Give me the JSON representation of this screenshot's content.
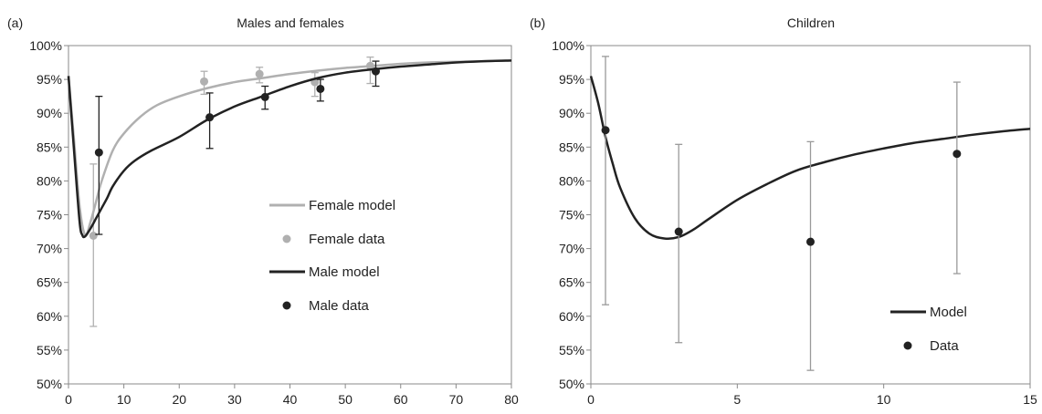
{
  "chart_data": [
    {
      "type": "line",
      "panel_label": "(a)",
      "title": "Males and females",
      "xlim": [
        0,
        80
      ],
      "ylim": [
        0.5,
        1.0
      ],
      "xticks": [
        0,
        10,
        20,
        30,
        40,
        50,
        60,
        70,
        80
      ],
      "yticks": [
        0.5,
        0.55,
        0.6,
        0.65,
        0.7,
        0.75,
        0.8,
        0.85,
        0.9,
        0.95,
        1.0
      ],
      "ytick_labels": [
        "50%",
        "55%",
        "60%",
        "65%",
        "70%",
        "75%",
        "80%",
        "85%",
        "90%",
        "95%",
        "100%"
      ],
      "grid": false,
      "legend_position": "center-right",
      "series": [
        {
          "name": "Female model",
          "kind": "line",
          "color": "#b0b0b0",
          "x": [
            0,
            1,
            2,
            3,
            4,
            5,
            6,
            8,
            10,
            13,
            16,
            20,
            25,
            30,
            35,
            40,
            45,
            50,
            55,
            60,
            65,
            70,
            75,
            80
          ],
          "y": [
            0.955,
            0.86,
            0.763,
            0.72,
            0.74,
            0.77,
            0.8,
            0.845,
            0.87,
            0.895,
            0.912,
            0.925,
            0.937,
            0.946,
            0.952,
            0.958,
            0.963,
            0.967,
            0.97,
            0.973,
            0.975,
            0.976,
            0.977,
            0.978
          ]
        },
        {
          "name": "Female data",
          "kind": "points",
          "color": "#b0b0b0",
          "x": [
            4.5,
            24.5,
            34.5,
            44.5,
            54.5
          ],
          "y": [
            0.719,
            0.947,
            0.958,
            0.946,
            0.97
          ],
          "err_low": [
            0.585,
            0.928,
            0.945,
            0.925,
            0.944
          ],
          "err_high": [
            0.825,
            0.962,
            0.968,
            0.96,
            0.983
          ]
        },
        {
          "name": "Male model",
          "kind": "line",
          "color": "#222222",
          "x": [
            0,
            1,
            2,
            2.5,
            3,
            4,
            5,
            6,
            7,
            8,
            10,
            12,
            15,
            20,
            25,
            30,
            35,
            40,
            45,
            50,
            55,
            60,
            65,
            70,
            75,
            80
          ],
          "y": [
            0.955,
            0.845,
            0.74,
            0.72,
            0.718,
            0.73,
            0.745,
            0.76,
            0.775,
            0.792,
            0.815,
            0.83,
            0.845,
            0.865,
            0.89,
            0.91,
            0.925,
            0.94,
            0.952,
            0.96,
            0.965,
            0.969,
            0.972,
            0.975,
            0.977,
            0.978
          ]
        },
        {
          "name": "Male data",
          "kind": "points",
          "color": "#222222",
          "x": [
            5.5,
            25.5,
            35.5,
            45.5,
            55.5
          ],
          "y": [
            0.842,
            0.894,
            0.924,
            0.936,
            0.962
          ],
          "err_low": [
            0.721,
            0.848,
            0.906,
            0.918,
            0.94
          ],
          "err_high": [
            0.925,
            0.93,
            0.94,
            0.95,
            0.977
          ]
        }
      ]
    },
    {
      "type": "line",
      "panel_label": "(b)",
      "title": "Children",
      "xlim": [
        0,
        15
      ],
      "ylim": [
        0.5,
        1.0
      ],
      "xticks": [
        0,
        5,
        10,
        15
      ],
      "yticks": [
        0.5,
        0.55,
        0.6,
        0.65,
        0.7,
        0.75,
        0.8,
        0.85,
        0.9,
        0.95,
        1.0
      ],
      "ytick_labels": [
        "50%",
        "55%",
        "60%",
        "65%",
        "70%",
        "75%",
        "80%",
        "85%",
        "90%",
        "95%",
        "100%"
      ],
      "grid": false,
      "legend_position": "bottom-right",
      "series": [
        {
          "name": "Model",
          "kind": "line",
          "color": "#222222",
          "x": [
            0,
            0.25,
            0.5,
            0.75,
            1,
            1.5,
            2,
            2.5,
            3,
            3.5,
            4,
            5,
            6,
            7,
            8,
            9,
            10,
            11,
            12,
            13,
            14,
            15
          ],
          "y": [
            0.955,
            0.915,
            0.865,
            0.825,
            0.79,
            0.745,
            0.722,
            0.715,
            0.717,
            0.728,
            0.743,
            0.772,
            0.795,
            0.815,
            0.828,
            0.839,
            0.848,
            0.856,
            0.862,
            0.868,
            0.873,
            0.877
          ]
        },
        {
          "name": "Data",
          "kind": "points",
          "color": "#222222",
          "err_color": "#9a9a9a",
          "x": [
            0.5,
            3,
            7.5,
            12.5
          ],
          "y": [
            0.875,
            0.725,
            0.71,
            0.84
          ],
          "err_low": [
            0.617,
            0.561,
            0.52,
            0.663
          ],
          "err_high": [
            0.984,
            0.854,
            0.858,
            0.946
          ]
        }
      ]
    }
  ]
}
